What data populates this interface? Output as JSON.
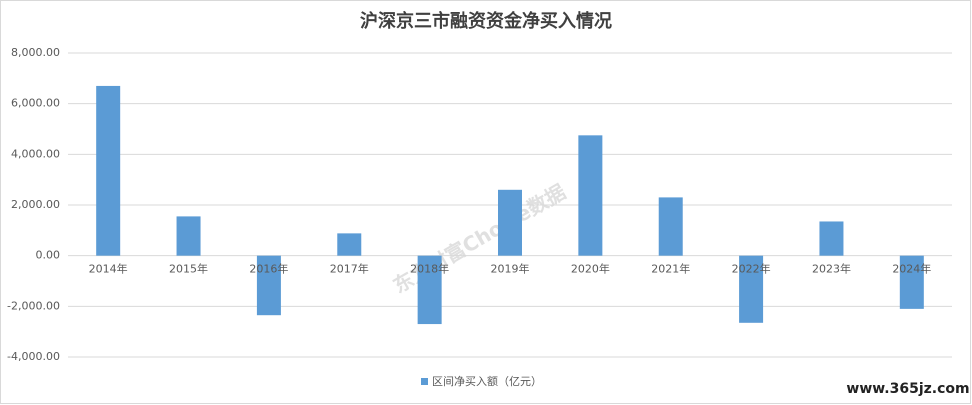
{
  "chart_data": {
    "type": "bar",
    "title": "沪深京三市融资资金净买入情况",
    "categories": [
      "2014年",
      "2015年",
      "2016年",
      "2017年",
      "2018年",
      "2019年",
      "2020年",
      "2021年",
      "2022年",
      "2023年",
      "2024年"
    ],
    "series": [
      {
        "name": "区间净买入额（亿元）",
        "color": "#5b9bd5",
        "values": [
          6700,
          1550,
          -2350,
          880,
          -2700,
          2600,
          4750,
          2300,
          -2650,
          1350,
          -2100
        ]
      }
    ],
    "ylim": [
      -4000,
      8000
    ],
    "yticks": [
      {
        "value": -4000,
        "label": "-4,000.00"
      },
      {
        "value": -2000,
        "label": "-2,000.00"
      },
      {
        "value": 0,
        "label": "0.00"
      },
      {
        "value": 2000,
        "label": "2,000.00"
      },
      {
        "value": 4000,
        "label": "4,000.00"
      },
      {
        "value": 6000,
        "label": "6,000.00"
      },
      {
        "value": 8000,
        "label": "8,000.00"
      }
    ],
    "grid": true,
    "legend": "bottom",
    "watermark": "东方财富Choice数据",
    "site_mark": "www.365jz.com"
  }
}
